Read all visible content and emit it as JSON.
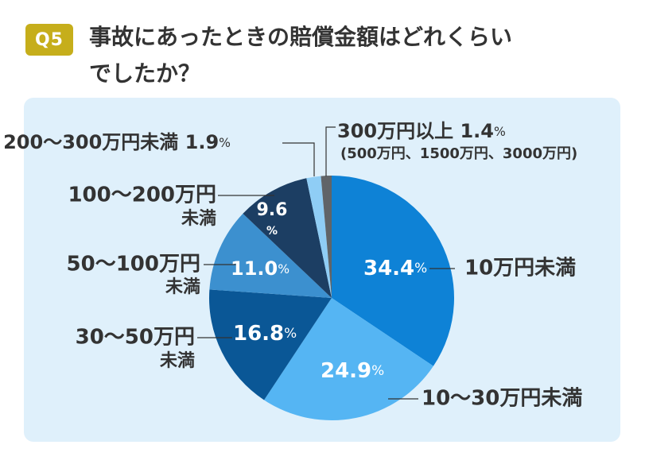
{
  "question": {
    "badge": "Q5",
    "title_line1": "事故にあったときの賠償金額はどれくらい",
    "title_line2": "でしたか？"
  },
  "colors": {
    "badge": "#c6ae1b",
    "panel": "#dff0fb"
  },
  "chart_data": {
    "type": "pie",
    "unit": "%",
    "slices": [
      {
        "label_line1": "10万円未満",
        "label_line2": "",
        "value": 34.4,
        "value_text": "34.4",
        "color": "#0e82d6"
      },
      {
        "label_line1": "10～30万円未満",
        "label_line2": "",
        "value": 24.9,
        "value_text": "24.9",
        "color": "#55b5f3"
      },
      {
        "label_line1": "30～50万円",
        "label_line2": "未満",
        "value": 16.8,
        "value_text": "16.8",
        "color": "#0a5796"
      },
      {
        "label_line1": "50～100万円",
        "label_line2": "未満",
        "value": 11.0,
        "value_text": "11.0",
        "color": "#3c90cf"
      },
      {
        "label_line1": "100～200万円",
        "label_line2": "未満",
        "value": 9.6,
        "value_text": "9.6",
        "color": "#1c3e63"
      },
      {
        "label_line1": "200～300万円未満",
        "label_line2": "",
        "value": 1.9,
        "value_text": "1.9",
        "color": "#8fcdf5"
      },
      {
        "label_line1": "300万円以上",
        "label_line2": "(500万円、1500万円、3000万円)",
        "value": 1.4,
        "value_text": "1.4",
        "color": "#606468"
      }
    ]
  }
}
